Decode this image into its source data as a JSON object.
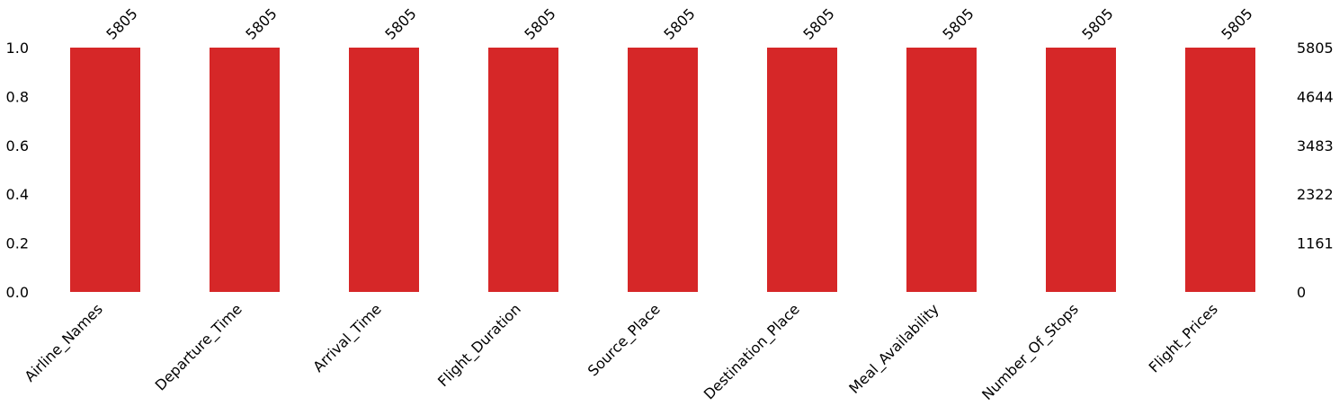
{
  "chart_data": {
    "type": "bar",
    "categories": [
      "Airline_Names",
      "Departure_Time",
      "Arrival_Time",
      "Flight_Duration",
      "Source_Place",
      "Destination_Place",
      "Meal_Availability",
      "Number_Of_Stops",
      "Flight_Prices"
    ],
    "values": [
      1.0,
      1.0,
      1.0,
      1.0,
      1.0,
      1.0,
      1.0,
      1.0,
      1.0
    ],
    "counts": [
      "5805",
      "5805",
      "5805",
      "5805",
      "5805",
      "5805",
      "5805",
      "5805",
      "5805"
    ],
    "ylim": [
      0,
      1.0
    ],
    "left_ticks": [
      "0.0",
      "0.2",
      "0.4",
      "0.6",
      "0.8",
      "1.0"
    ],
    "right_ticks": [
      "0",
      "1161",
      "2322",
      "3483",
      "4644",
      "5805"
    ],
    "title": "",
    "xlabel": "",
    "ylabel": "",
    "bar_color": "#d62728",
    "grid": false
  }
}
